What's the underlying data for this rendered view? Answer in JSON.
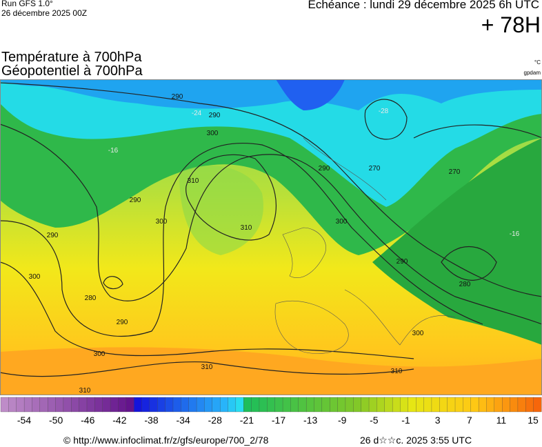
{
  "header": {
    "run": "Run GFS 1.0°",
    "run_date": "26 décembre 2025 00Z",
    "echeance": "Echéance : lundi 29 décembre 2025 6h UTC",
    "lead": "+ 78H"
  },
  "titles": {
    "line1": "Température à 700hPa",
    "line2": "Géopotentiel à 700hPa",
    "unit1": "°C",
    "unit2": "gpdam"
  },
  "map": {
    "contour_labels": [
      "290",
      "290",
      "290",
      "290",
      "290",
      "290",
      "290",
      "300",
      "300",
      "300",
      "300",
      "300",
      "300",
      "310",
      "310",
      "310",
      "310",
      "310",
      "280",
      "280",
      "270",
      "270"
    ],
    "temperature_labels": [
      "-24",
      "-16",
      "-16",
      "-28"
    ]
  },
  "colorbar": {
    "labels": [
      -54,
      -50,
      -46,
      -42,
      -38,
      -34,
      -28,
      -21,
      -17,
      -13,
      -9,
      -5,
      -1,
      3,
      7,
      11,
      15
    ]
  },
  "footer": {
    "source": "© http://www.infoclimat.fr/z/gfs/europe/700_2/78",
    "date": "26 d☆☆c. 2025  3:55 UTC"
  }
}
